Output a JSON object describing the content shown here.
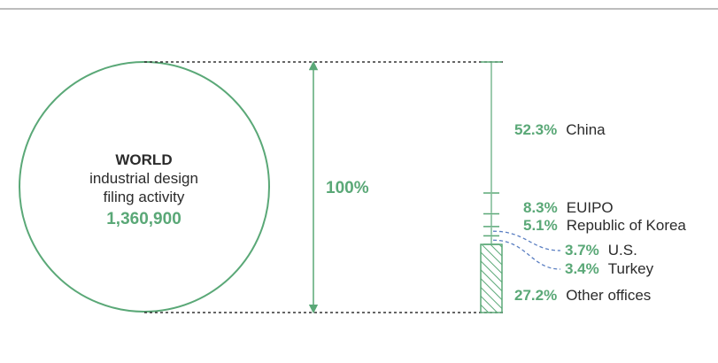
{
  "world": {
    "title": "WORLD",
    "subtitle_line1": "industrial design",
    "subtitle_line2": "filing activity",
    "total": "1,360,900",
    "total_pct": "100%"
  },
  "shares": [
    {
      "name": "China",
      "pct": "52.3%",
      "value": 52.3
    },
    {
      "name": "EUIPO",
      "pct": "8.3%",
      "value": 8.3
    },
    {
      "name": "Republic of Korea",
      "pct": "5.1%",
      "value": 5.1
    },
    {
      "name": "U.S.",
      "pct": "3.7%",
      "value": 3.7
    },
    {
      "name": "Turkey",
      "pct": "3.4%",
      "value": 3.4
    },
    {
      "name": "Other offices",
      "pct": "27.2%",
      "value": 27.2
    }
  ],
  "colors": {
    "accent": "#5aa877",
    "text": "#2b2b2b",
    "dotted": "#333333",
    "connector": "#5b7fc2",
    "rule": "#bdbdbd"
  }
}
